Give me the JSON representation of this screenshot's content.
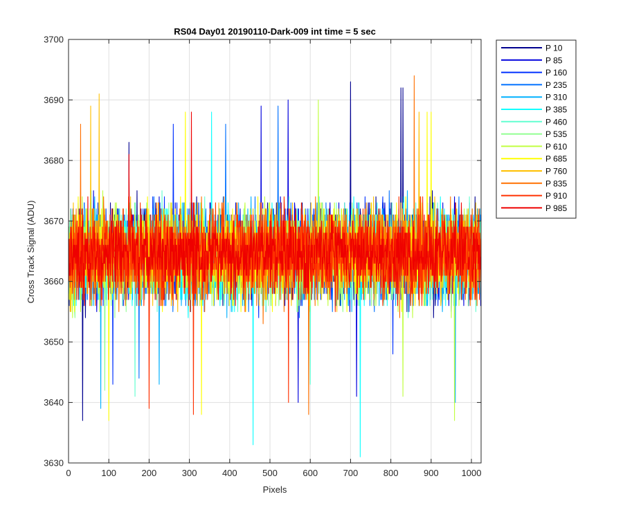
{
  "chart_data": {
    "type": "line",
    "title": "RS04 Day01 20190110-Dark-009 int time = 5 sec",
    "xlabel": "Pixels",
    "ylabel": "Cross Track Signal (ADU)",
    "xlim": [
      0,
      1024
    ],
    "ylim": [
      3630,
      3700
    ],
    "xticks": [
      0,
      100,
      200,
      300,
      400,
      500,
      600,
      700,
      800,
      900,
      1000
    ],
    "yticks": [
      3630,
      3640,
      3650,
      3660,
      3670,
      3680,
      3690,
      3700
    ],
    "grid": true,
    "legend_position": "outside-top-right",
    "series": [
      {
        "name": "P 10",
        "color": "#00008f",
        "mean": 3664.5,
        "spread": 7,
        "seed": 11,
        "spikes": [
          [
            35,
            3637
          ],
          [
            150,
            3683
          ],
          [
            700,
            3693
          ],
          [
            825,
            3692
          ],
          [
            830,
            3692
          ]
        ]
      },
      {
        "name": "P 85",
        "color": "#0000dd",
        "mean": 3664.5,
        "spread": 7,
        "seed": 23,
        "spikes": [
          [
            478,
            3689
          ],
          [
            545,
            3690
          ],
          [
            570,
            3640
          ],
          [
            715,
            3641
          ]
        ]
      },
      {
        "name": "P 160",
        "color": "#0030ff",
        "mean": 3664.5,
        "spread": 7,
        "seed": 37,
        "spikes": [
          [
            110,
            3643
          ],
          [
            260,
            3686
          ],
          [
            805,
            3648
          ]
        ]
      },
      {
        "name": "P 235",
        "color": "#0070ff",
        "mean": 3664.5,
        "spread": 7,
        "seed": 41,
        "spikes": [
          [
            175,
            3644
          ],
          [
            390,
            3686
          ],
          [
            520,
            3689
          ]
        ]
      },
      {
        "name": "P 310",
        "color": "#00b0ff",
        "mean": 3664.5,
        "spread": 7,
        "seed": 53,
        "spikes": [
          [
            80,
            3639
          ],
          [
            225,
            3643
          ],
          [
            960,
            3640
          ]
        ]
      },
      {
        "name": "P 385",
        "color": "#10ffff",
        "mean": 3664.5,
        "spread": 7,
        "seed": 67,
        "spikes": [
          [
            458,
            3633
          ],
          [
            724,
            3631
          ],
          [
            355,
            3688
          ]
        ]
      },
      {
        "name": "P 460",
        "color": "#60ffd0",
        "mean": 3664.5,
        "spread": 7,
        "seed": 71,
        "spikes": [
          [
            165,
            3641
          ],
          [
            600,
            3643
          ]
        ]
      },
      {
        "name": "P 535",
        "color": "#90ff90",
        "mean": 3664.5,
        "spread": 7,
        "seed": 83,
        "spikes": [
          [
            90,
            3642
          ],
          [
            620,
            3684
          ]
        ]
      },
      {
        "name": "P 610",
        "color": "#c0ff40",
        "mean": 3664.5,
        "spread": 7,
        "seed": 97,
        "spikes": [
          [
            620,
            3690
          ],
          [
            958,
            3637
          ],
          [
            830,
            3641
          ]
        ]
      },
      {
        "name": "P 685",
        "color": "#ffff00",
        "mean": 3664.5,
        "spread": 7,
        "seed": 101,
        "spikes": [
          [
            100,
            3637
          ],
          [
            330,
            3638
          ],
          [
            290,
            3688
          ],
          [
            890,
            3688
          ],
          [
            900,
            3688
          ]
        ]
      },
      {
        "name": "P 760",
        "color": "#ffc000",
        "mean": 3664.5,
        "spread": 7,
        "seed": 113,
        "spikes": [
          [
            76,
            3691
          ],
          [
            55,
            3689
          ],
          [
            870,
            3688
          ]
        ]
      },
      {
        "name": "P 835",
        "color": "#ff7000",
        "mean": 3664.5,
        "spread": 7,
        "seed": 127,
        "spikes": [
          [
            30,
            3686
          ],
          [
            596,
            3638
          ],
          [
            858,
            3694
          ]
        ]
      },
      {
        "name": "P 910",
        "color": "#ff3000",
        "mean": 3664.5,
        "spread": 7,
        "seed": 131,
        "spikes": [
          [
            200,
            3639
          ],
          [
            310,
            3638
          ],
          [
            546,
            3640
          ]
        ]
      },
      {
        "name": "P 985",
        "color": "#ee0000",
        "mean": 3664.5,
        "spread": 6,
        "seed": 149,
        "spikes": [
          [
            305,
            3688
          ],
          [
            150,
            3681
          ]
        ]
      }
    ]
  }
}
